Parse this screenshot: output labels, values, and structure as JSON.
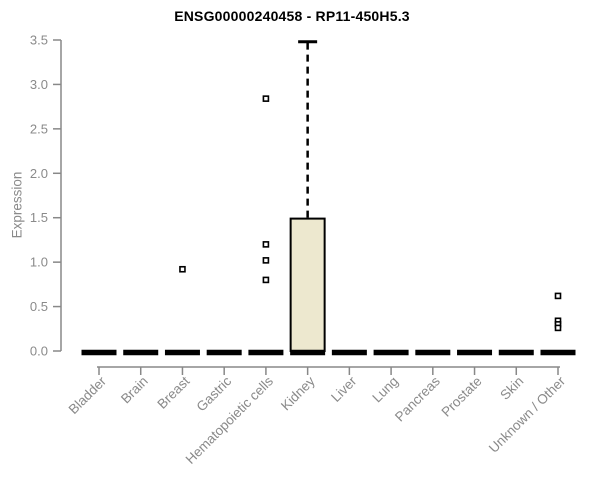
{
  "chart_data": {
    "type": "boxplot",
    "title": "ENSG00000240458 - RP11-450H5.3",
    "ylabel": "Expression",
    "xlabel": "",
    "ylim": [
      0,
      3.5
    ],
    "yticks": [
      "0.0",
      "0.5",
      "1.0",
      "1.5",
      "2.0",
      "2.5",
      "3.0",
      "3.5"
    ],
    "grid": false,
    "legend": "none",
    "categories": [
      "Bladder",
      "Brain",
      "Breast",
      "Gastric",
      "Hematopoietic cells",
      "Kidney",
      "Liver",
      "Lung",
      "Pancreas",
      "Prostate",
      "Skin",
      "Unknown / Other"
    ],
    "boxes": [
      {
        "category": "Bladder",
        "whisker_low": 0,
        "q1": 0,
        "median": 0,
        "q3": 0,
        "whisker_high": 0,
        "outliers": []
      },
      {
        "category": "Brain",
        "whisker_low": 0,
        "q1": 0,
        "median": 0,
        "q3": 0,
        "whisker_high": 0,
        "outliers": []
      },
      {
        "category": "Breast",
        "whisker_low": 0,
        "q1": 0,
        "median": 0,
        "q3": 0,
        "whisker_high": 0,
        "outliers": [
          0.92
        ]
      },
      {
        "category": "Gastric",
        "whisker_low": 0,
        "q1": 0,
        "median": 0,
        "q3": 0,
        "whisker_high": 0,
        "outliers": []
      },
      {
        "category": "Hematopoietic cells",
        "whisker_low": 0,
        "q1": 0,
        "median": 0,
        "q3": 0,
        "whisker_high": 0,
        "outliers": [
          2.84,
          1.2,
          1.02,
          0.8
        ]
      },
      {
        "category": "Kidney",
        "whisker_low": 0,
        "q1": 0,
        "median": 0,
        "q3": 1.49,
        "whisker_high": 3.48,
        "outliers": []
      },
      {
        "category": "Liver",
        "whisker_low": 0,
        "q1": 0,
        "median": 0,
        "q3": 0,
        "whisker_high": 0,
        "outliers": []
      },
      {
        "category": "Lung",
        "whisker_low": 0,
        "q1": 0,
        "median": 0,
        "q3": 0,
        "whisker_high": 0,
        "outliers": []
      },
      {
        "category": "Pancreas",
        "whisker_low": 0,
        "q1": 0,
        "median": 0,
        "q3": 0,
        "whisker_high": 0,
        "outliers": []
      },
      {
        "category": "Prostate",
        "whisker_low": 0,
        "q1": 0,
        "median": 0,
        "q3": 0,
        "whisker_high": 0,
        "outliers": []
      },
      {
        "category": "Skin",
        "whisker_low": 0,
        "q1": 0,
        "median": 0,
        "q3": 0,
        "whisker_high": 0,
        "outliers": []
      },
      {
        "category": "Unknown / Other",
        "whisker_low": 0,
        "q1": 0,
        "median": 0,
        "q3": 0,
        "whisker_high": 0,
        "outliers": [
          0.62,
          0.34,
          0.3,
          0.26
        ]
      }
    ],
    "colors": {
      "background": "#ffffff",
      "box_fill": "#EDE8CF",
      "box_stroke": "#000000",
      "median": "#000000",
      "whisker": "#000000",
      "outlier": "#000000",
      "axis": "#888888",
      "label": "#8a8a8a",
      "title": "#000000"
    }
  }
}
